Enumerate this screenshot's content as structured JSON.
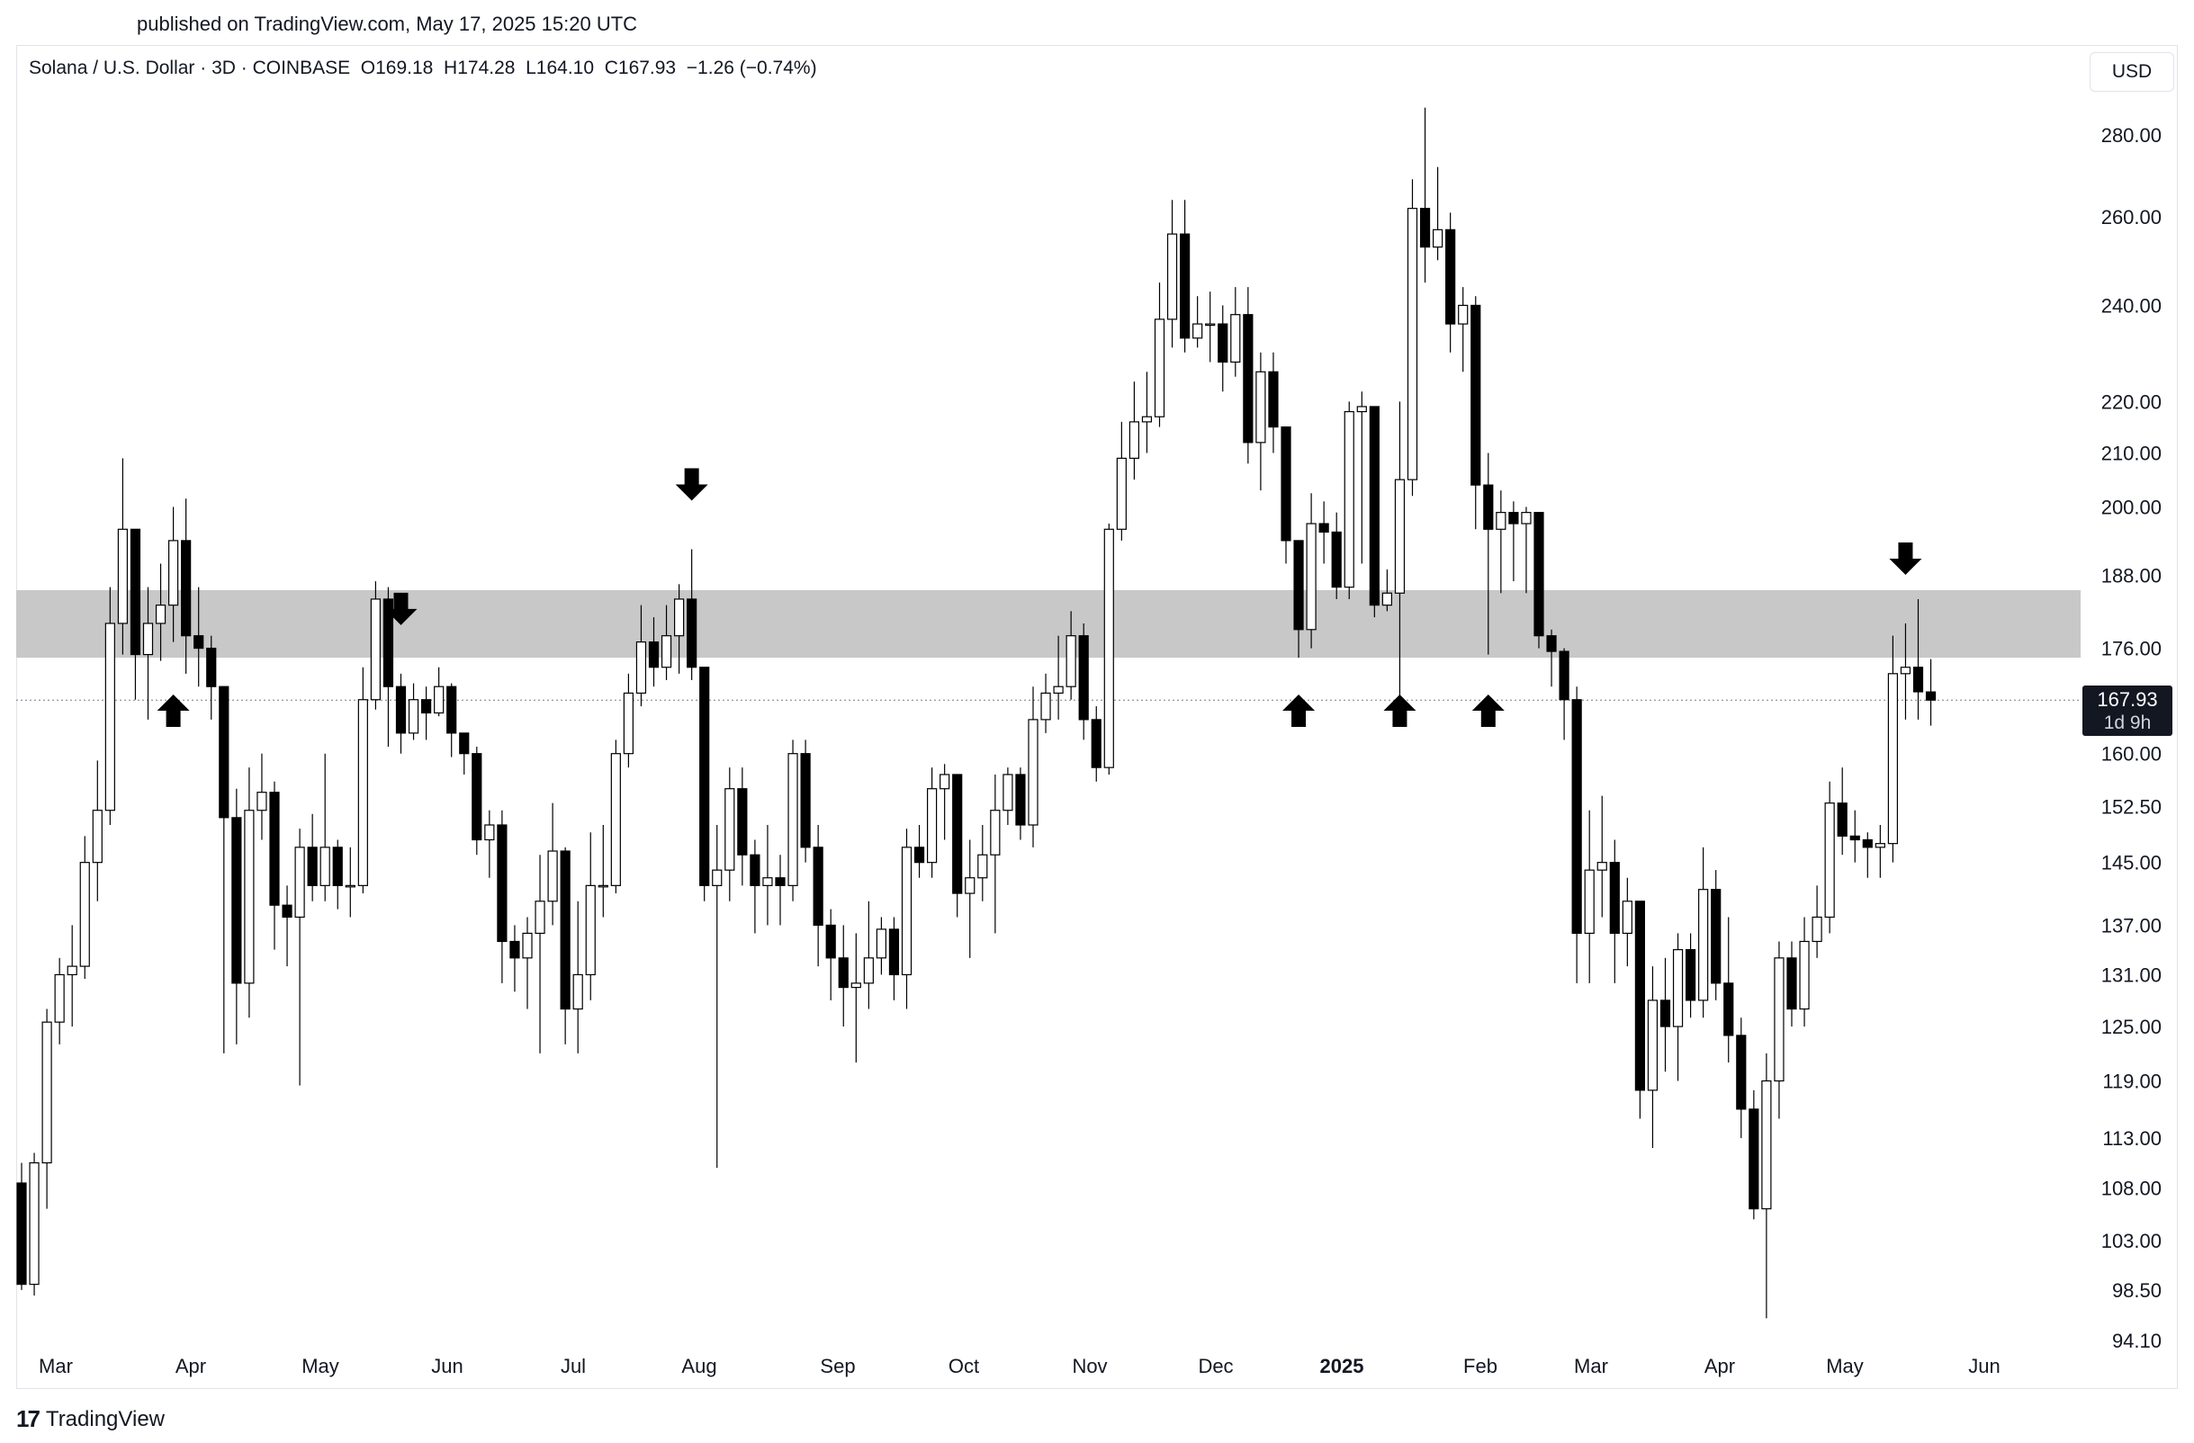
{
  "header": {
    "published": "published on TradingView.com, May 17, 2025 15:20 UTC"
  },
  "legend": {
    "symbol": "Solana / U.S. Dollar · 3D · COINBASE",
    "open": "O169.18",
    "high": "H174.28",
    "low": "L164.10",
    "close": "C167.93",
    "change": "−1.26 (−0.74%)"
  },
  "currency": "USD",
  "price_badge": {
    "price": "167.93",
    "countdown": "1d 9h"
  },
  "footer": {
    "brand": "TradingView"
  },
  "colors": {
    "up_fill": "#ffffff",
    "down_fill": "#000000",
    "wick": "#000000",
    "zone": "#c8c8c8",
    "grid_text": "#131722",
    "last_price_line": "#787b86"
  },
  "chart_data": {
    "type": "candlestick",
    "scale": "log",
    "ylim": [
      94.1,
      300
    ],
    "y_ticks": [
      "280.00",
      "260.00",
      "240.00",
      "220.00",
      "210.00",
      "200.00",
      "188.00",
      "176.00",
      "160.00",
      "152.50",
      "145.00",
      "137.00",
      "131.00",
      "125.00",
      "119.00",
      "113.00",
      "108.00",
      "103.00",
      "98.50",
      "94.10"
    ],
    "x_ticks": [
      "Mar",
      "Apr",
      "May",
      "Jun",
      "Jul",
      "Aug",
      "Sep",
      "Oct",
      "Nov",
      "Dec",
      "2025",
      "Feb",
      "Mar",
      "Apr",
      "May",
      "Jun"
    ],
    "x_tick_bold": "2025",
    "last_price": 167.93,
    "resistance_zone": [
      174.5,
      185.5
    ],
    "markers": [
      {
        "type": "up",
        "candle": 12
      },
      {
        "type": "down",
        "candle": 30
      },
      {
        "type": "down",
        "candle": 53
      },
      {
        "type": "up",
        "candle": 101
      },
      {
        "type": "up",
        "candle": 109
      },
      {
        "type": "up",
        "candle": 116
      },
      {
        "type": "down",
        "candle": 149
      }
    ],
    "candles": [
      [
        108.5,
        99.0,
        110.5,
        98.5
      ],
      [
        99.0,
        110.5,
        111.5,
        98.0
      ],
      [
        110.5,
        125.5,
        127.0,
        106.0
      ],
      [
        125.5,
        131.0,
        133.0,
        123.0
      ],
      [
        131.0,
        132.0,
        137.0,
        125.0
      ],
      [
        132.0,
        145.0,
        148.5,
        130.5
      ],
      [
        145.0,
        152.0,
        159.0,
        140.0
      ],
      [
        152.0,
        180.0,
        186.0,
        150.0
      ],
      [
        180.0,
        196.0,
        209.0,
        175.0
      ],
      [
        196.0,
        175.0,
        196.0,
        168.0
      ],
      [
        175.0,
        180.0,
        186.0,
        165.0
      ],
      [
        180.0,
        183.0,
        190.0,
        174.0
      ],
      [
        183.0,
        194.0,
        200.0,
        177.0
      ],
      [
        194.0,
        178.0,
        201.5,
        172.0
      ],
      [
        178.0,
        176.0,
        186.0,
        170.0
      ],
      [
        176.0,
        170.0,
        178.0,
        165.0
      ],
      [
        170.0,
        151.0,
        170.0,
        122.0
      ],
      [
        151.0,
        130.0,
        155.0,
        123.0
      ],
      [
        130.0,
        152.0,
        158.0,
        126.0
      ],
      [
        152.0,
        154.5,
        160.0,
        148.0
      ],
      [
        154.5,
        139.5,
        156.0,
        134.0
      ],
      [
        139.5,
        138.0,
        142.0,
        132.0
      ],
      [
        138.0,
        147.0,
        149.5,
        118.5
      ],
      [
        147.0,
        142.0,
        151.5,
        140.0
      ],
      [
        142.0,
        147.0,
        160.0,
        140.0
      ],
      [
        147.0,
        142.0,
        148.0,
        139.0
      ],
      [
        142.0,
        142.0,
        147.0,
        138.0
      ],
      [
        142.0,
        168.0,
        173.0,
        141.0
      ],
      [
        168.0,
        184.0,
        187.0,
        166.5
      ],
      [
        184.0,
        170.0,
        186.0,
        161.0
      ],
      [
        170.0,
        163.0,
        172.0,
        160.0
      ],
      [
        163.0,
        168.0,
        170.5,
        162.0
      ],
      [
        168.0,
        166.0,
        170.0,
        162.0
      ],
      [
        166.0,
        170.0,
        173.0,
        165.5
      ],
      [
        170.0,
        163.0,
        170.5,
        159.5
      ],
      [
        163.0,
        160.0,
        163.0,
        157.0
      ],
      [
        160.0,
        148.0,
        161.0,
        146.0
      ],
      [
        148.0,
        150.0,
        152.0,
        143.0
      ],
      [
        150.0,
        135.0,
        152.0,
        130.0
      ],
      [
        135.0,
        133.0,
        137.0,
        129.0
      ],
      [
        133.0,
        136.0,
        138.0,
        127.0
      ],
      [
        136.0,
        140.0,
        146.0,
        122.0
      ],
      [
        140.0,
        146.5,
        153.0,
        137.0
      ],
      [
        146.5,
        127.0,
        147.0,
        123.0
      ],
      [
        127.0,
        131.0,
        140.0,
        122.0
      ],
      [
        131.0,
        142.0,
        149.0,
        128.0
      ],
      [
        142.0,
        142.0,
        150.0,
        138.0
      ],
      [
        142.0,
        160.0,
        162.0,
        141.0
      ],
      [
        160.0,
        169.0,
        172.0,
        158.0
      ],
      [
        169.0,
        177.0,
        183.0,
        167.0
      ],
      [
        177.0,
        173.0,
        181.0,
        170.0
      ],
      [
        173.0,
        178.0,
        183.0,
        171.0
      ],
      [
        178.0,
        184.0,
        186.5,
        172.0
      ],
      [
        184.0,
        173.0,
        192.5,
        171.0
      ],
      [
        173.0,
        142.0,
        173.0,
        140.0
      ],
      [
        142.0,
        144.0,
        150.0,
        110.0
      ],
      [
        144.0,
        155.0,
        158.0,
        140.0
      ],
      [
        155.0,
        146.0,
        158.0,
        142.0
      ],
      [
        146.0,
        142.0,
        148.0,
        136.0
      ],
      [
        142.0,
        143.0,
        150.0,
        137.0
      ],
      [
        143.0,
        142.0,
        146.0,
        137.0
      ],
      [
        142.0,
        160.0,
        162.0,
        140.0
      ],
      [
        160.0,
        147.0,
        162.0,
        145.0
      ],
      [
        147.0,
        137.0,
        150.0,
        132.0
      ],
      [
        137.0,
        133.0,
        139.0,
        128.0
      ],
      [
        133.0,
        129.5,
        137.0,
        125.0
      ],
      [
        129.5,
        130.0,
        136.0,
        121.0
      ],
      [
        130.0,
        133.0,
        140.0,
        127.0
      ],
      [
        133.0,
        136.5,
        138.0,
        131.0
      ],
      [
        136.5,
        131.0,
        138.0,
        128.0
      ],
      [
        131.0,
        147.0,
        149.5,
        127.0
      ],
      [
        147.0,
        145.0,
        150.0,
        143.0
      ],
      [
        145.0,
        155.0,
        158.0,
        143.0
      ],
      [
        155.0,
        157.0,
        158.5,
        148.0
      ],
      [
        157.0,
        141.0,
        157.0,
        138.0
      ],
      [
        141.0,
        143.0,
        148.0,
        133.0
      ],
      [
        143.0,
        146.0,
        150.0,
        140.0
      ],
      [
        146.0,
        152.0,
        157.0,
        136.0
      ],
      [
        152.0,
        157.0,
        158.0,
        150.0
      ],
      [
        157.0,
        150.0,
        158.0,
        148.0
      ],
      [
        150.0,
        165.0,
        170.0,
        147.0
      ],
      [
        165.0,
        169.0,
        172.0,
        163.0
      ],
      [
        169.0,
        170.0,
        178.0,
        165.0
      ],
      [
        170.0,
        178.0,
        182.0,
        168.0
      ],
      [
        178.0,
        165.0,
        180.0,
        162.0
      ],
      [
        165.0,
        158.0,
        167.0,
        156.0
      ],
      [
        158.0,
        196.0,
        197.0,
        157.0
      ],
      [
        196.0,
        209.0,
        216.0,
        194.0
      ],
      [
        209.0,
        216.0,
        224.0,
        205.0
      ],
      [
        216.0,
        217.0,
        226.0,
        210.0
      ],
      [
        217.0,
        237.0,
        245.0,
        215.0
      ],
      [
        237.0,
        256.0,
        264.0,
        231.0
      ],
      [
        256.0,
        233.0,
        264.0,
        230.0
      ],
      [
        233.0,
        236.0,
        242.0,
        231.0
      ],
      [
        236.0,
        236.0,
        243.0,
        228.0
      ],
      [
        236.0,
        228.0,
        240.0,
        222.0
      ],
      [
        228.0,
        238.0,
        244.0,
        225.0
      ],
      [
        238.0,
        212.0,
        244.0,
        208.0
      ],
      [
        212.0,
        226.0,
        230.0,
        203.0
      ],
      [
        226.0,
        215.0,
        230.0,
        210.0
      ],
      [
        215.0,
        194.0,
        215.0,
        190.0
      ],
      [
        194.0,
        179.0,
        194.0,
        174.5
      ],
      [
        179.0,
        197.0,
        202.5,
        176.0
      ],
      [
        197.0,
        195.5,
        201.0,
        190.0
      ],
      [
        195.5,
        186.0,
        199.0,
        184.0
      ],
      [
        186.0,
        218.0,
        220.0,
        184.0
      ],
      [
        218.0,
        219.0,
        222.0,
        190.0
      ],
      [
        219.0,
        183.0,
        219.0,
        181.0
      ],
      [
        183.0,
        185.0,
        189.0,
        182.0
      ],
      [
        185.0,
        205.0,
        220.0,
        167.0
      ],
      [
        205.0,
        262.0,
        269.0,
        202.0
      ],
      [
        262.0,
        253.0,
        287.0,
        245.0
      ],
      [
        253.0,
        257.0,
        272.0,
        250.0
      ],
      [
        257.0,
        236.0,
        261.0,
        230.0
      ],
      [
        236.0,
        240.0,
        244.0,
        226.0
      ],
      [
        240.0,
        204.0,
        242.0,
        196.0
      ],
      [
        204.0,
        196.0,
        210.0,
        175.0
      ],
      [
        196.0,
        199.0,
        203.0,
        185.0
      ],
      [
        199.0,
        197.0,
        201.0,
        187.0
      ],
      [
        197.0,
        199.0,
        200.0,
        185.0
      ],
      [
        199.0,
        178.0,
        199.0,
        176.0
      ],
      [
        178.0,
        175.5,
        179.0,
        170.0
      ],
      [
        175.5,
        168.0,
        176.0,
        162.0
      ],
      [
        168.0,
        136.0,
        170.0,
        130.0
      ],
      [
        136.0,
        144.0,
        152.0,
        130.0
      ],
      [
        144.0,
        145.0,
        154.0,
        138.0
      ],
      [
        145.0,
        136.0,
        148.0,
        130.0
      ],
      [
        136.0,
        140.0,
        143.0,
        132.0
      ],
      [
        140.0,
        118.0,
        140.0,
        115.0
      ],
      [
        118.0,
        128.0,
        132.0,
        112.0
      ],
      [
        128.0,
        125.0,
        133.0,
        120.0
      ],
      [
        125.0,
        134.0,
        136.0,
        119.0
      ],
      [
        134.0,
        128.0,
        136.0,
        126.0
      ],
      [
        128.0,
        141.5,
        147.0,
        126.0
      ],
      [
        141.5,
        130.0,
        144.0,
        128.0
      ],
      [
        130.0,
        124.0,
        138.0,
        121.0
      ],
      [
        124.0,
        116.0,
        126.0,
        113.0
      ],
      [
        116.0,
        106.0,
        118.0,
        105.0
      ],
      [
        106.0,
        119.0,
        122.0,
        96.0
      ],
      [
        119.0,
        133.0,
        135.0,
        115.0
      ],
      [
        133.0,
        127.0,
        135.0,
        125.0
      ],
      [
        127.0,
        135.0,
        138.0,
        125.0
      ],
      [
        135.0,
        138.0,
        142.0,
        133.0
      ],
      [
        138.0,
        153.0,
        156.0,
        136.0
      ],
      [
        153.0,
        148.5,
        158.0,
        146.0
      ],
      [
        148.5,
        148.0,
        152.0,
        145.0
      ],
      [
        148.0,
        147.0,
        149.0,
        143.0
      ],
      [
        147.0,
        147.5,
        150.0,
        143.0
      ],
      [
        147.5,
        172.0,
        178.0,
        145.0
      ],
      [
        172.0,
        173.0,
        180.0,
        165.0
      ],
      [
        173.0,
        169.2,
        184.0,
        165.0
      ],
      [
        169.18,
        167.93,
        174.28,
        164.1
      ]
    ]
  }
}
